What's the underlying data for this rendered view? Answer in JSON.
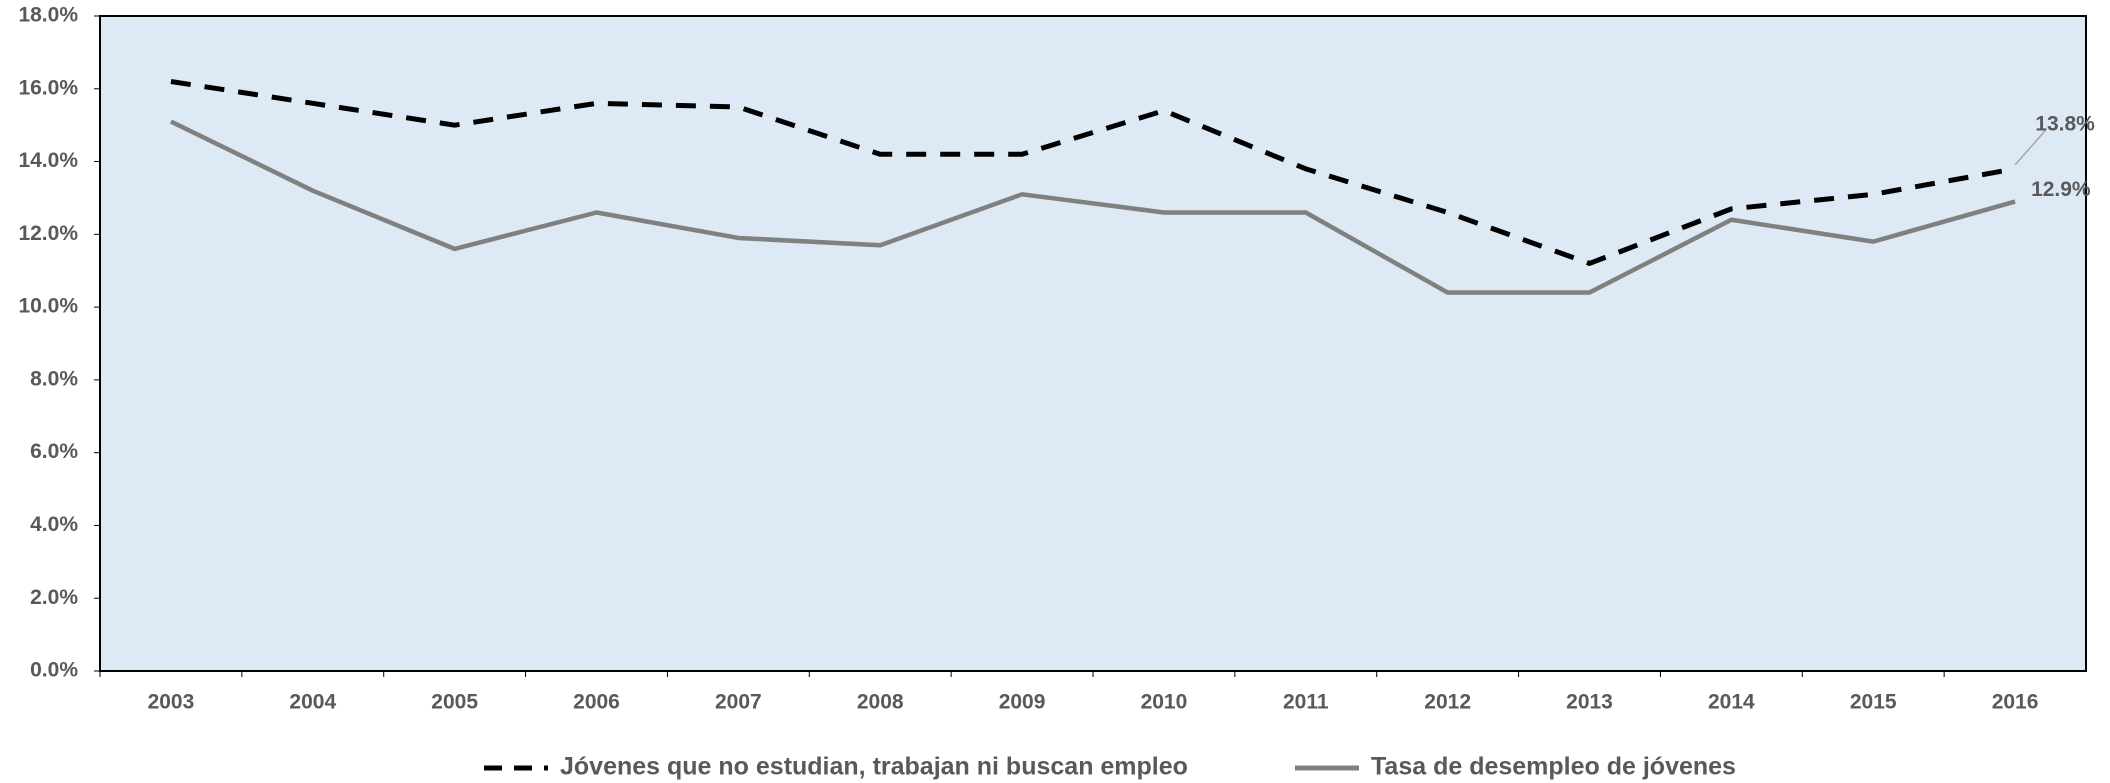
{
  "chart_data": {
    "type": "line",
    "categories": [
      "2003",
      "2004",
      "2005",
      "2006",
      "2007",
      "2008",
      "2009",
      "2010",
      "2011",
      "2012",
      "2013",
      "2014",
      "2015",
      "2016"
    ],
    "series": [
      {
        "name": "Jóvenes que no estudian, trabajan ni buscan empleo",
        "color": "#000000",
        "dash": true,
        "values": [
          16.2,
          15.6,
          15.0,
          15.6,
          15.5,
          14.2,
          14.2,
          15.4,
          13.8,
          12.6,
          11.2,
          12.7,
          13.1,
          13.8
        ],
        "value_labels": [
          null,
          null,
          null,
          null,
          null,
          null,
          null,
          null,
          null,
          null,
          null,
          null,
          null,
          "13.8%"
        ]
      },
      {
        "name": "Tasa de desempleo de jóvenes",
        "color": "#808080",
        "dash": false,
        "values": [
          15.1,
          13.2,
          11.6,
          12.6,
          11.9,
          11.7,
          13.1,
          12.6,
          12.6,
          10.4,
          10.4,
          12.4,
          11.8,
          12.9
        ],
        "value_labels": [
          null,
          null,
          null,
          null,
          null,
          null,
          null,
          null,
          null,
          null,
          null,
          null,
          null,
          "12.9%"
        ]
      }
    ],
    "ylim": [
      0,
      18
    ],
    "yticks": [
      {
        "value": 0,
        "label": "0.0%"
      },
      {
        "value": 2,
        "label": "2.0%"
      },
      {
        "value": 4,
        "label": "4.0%"
      },
      {
        "value": 6,
        "label": "6.0%"
      },
      {
        "value": 8,
        "label": "8.0%"
      },
      {
        "value": 10,
        "label": "10.0%"
      },
      {
        "value": 12,
        "label": "12.0%"
      },
      {
        "value": 14,
        "label": "14.0%"
      },
      {
        "value": 16,
        "label": "16.0%"
      },
      {
        "value": 18,
        "label": "18.0%"
      }
    ],
    "plot_background": "#dde9f5",
    "legend": "bottom"
  }
}
